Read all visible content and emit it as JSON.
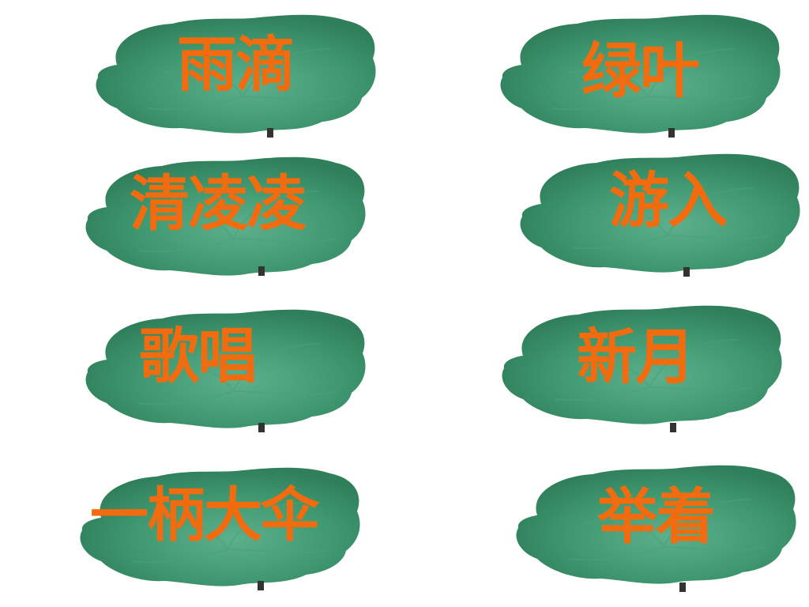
{
  "colors": {
    "text": "#f26b0f",
    "leaf_dark": "#2f7f5a",
    "leaf_mid": "#3f9870",
    "leaf_light": "#5cb08c",
    "background": "#ffffff"
  },
  "cards": [
    {
      "word": "雨滴",
      "icon": "lotus-leaf-icon"
    },
    {
      "word": "绿叶",
      "icon": "lotus-leaf-icon"
    },
    {
      "word": "清凌凌",
      "icon": "lotus-leaf-icon"
    },
    {
      "word": "游入",
      "icon": "lotus-leaf-icon"
    },
    {
      "word": "歌唱",
      "icon": "lotus-leaf-icon"
    },
    {
      "word": "新月",
      "icon": "lotus-leaf-icon"
    },
    {
      "word": "一柄大伞",
      "icon": "lotus-leaf-icon"
    },
    {
      "word": "举着",
      "icon": "lotus-leaf-icon"
    }
  ]
}
